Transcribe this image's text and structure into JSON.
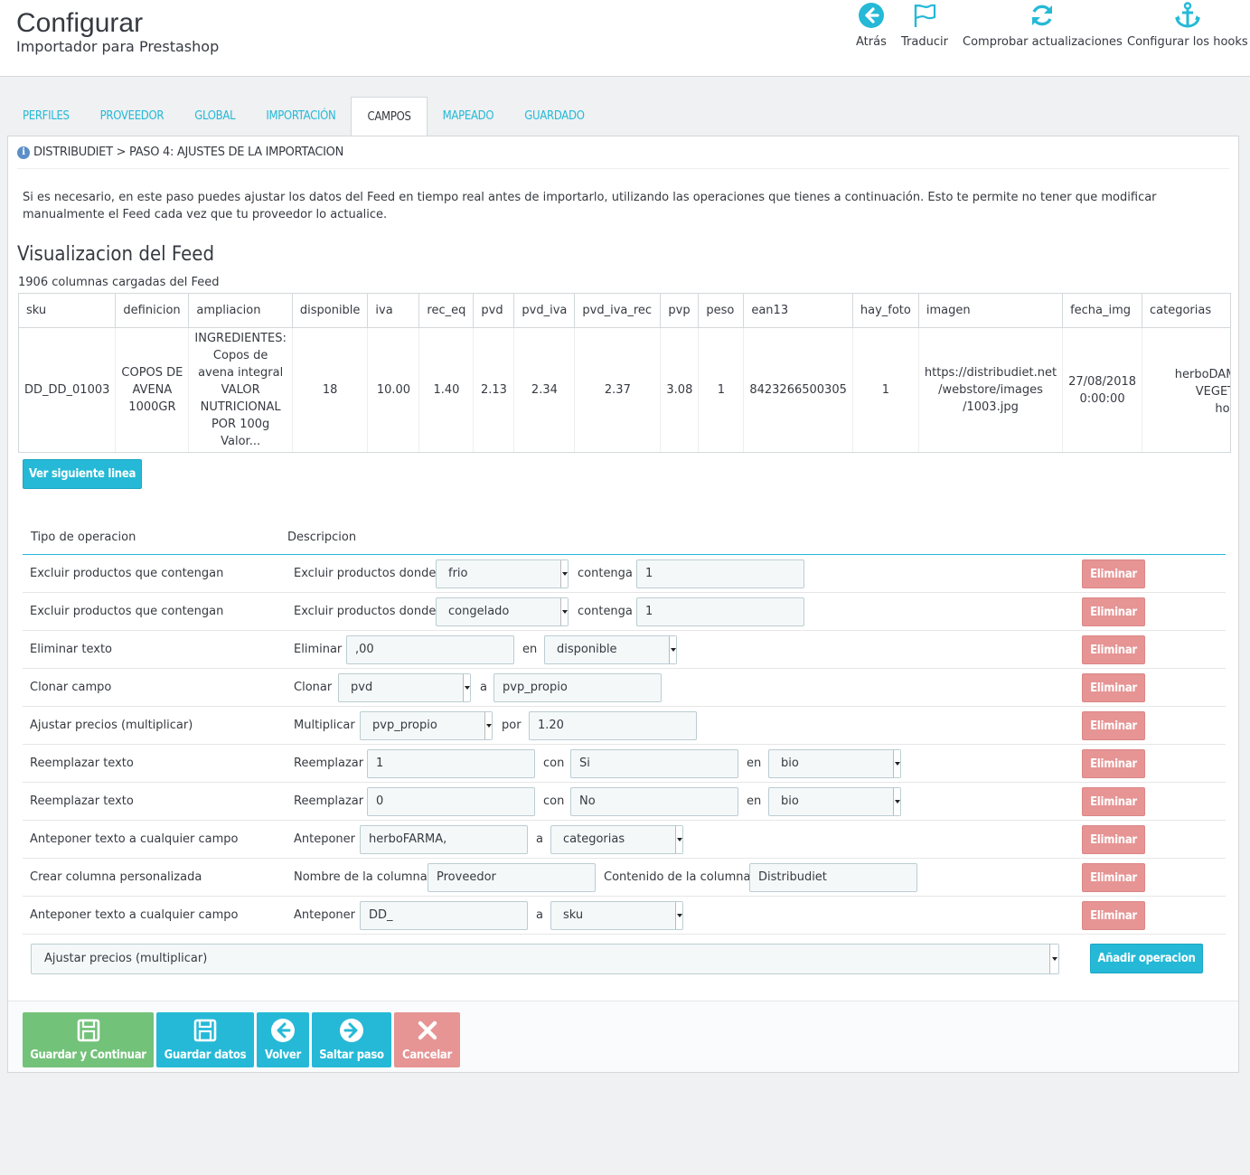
{
  "header": {
    "title": "Configurar",
    "subtitle": "Importador para Prestashop",
    "toolbar": [
      {
        "label": "Atrás",
        "icon": "arrow-left-circle-icon"
      },
      {
        "label": "Traducir",
        "icon": "flag-icon"
      },
      {
        "label": "Comprobar actualizaciones",
        "icon": "refresh-icon"
      },
      {
        "label": "Configurar los hooks",
        "icon": "anchor-icon"
      }
    ]
  },
  "tabs": [
    "PERFILES",
    "PROVEEDOR",
    "GLOBAL",
    "IMPORTACIÓN",
    "CAMPOS",
    "MAPEADO",
    "GUARDADO"
  ],
  "active_tab": "CAMPOS",
  "panel": {
    "heading": "DISTRIBUDIET > PASO 4: AJUSTES DE LA IMPORTACION",
    "intro": "Si es necesario, en este paso puedes ajustar los datos del Feed en tiempo real antes de importarlo, utilizando las operaciones que tienes a continuación. Esto te permite no tener que modificar manualmente el Feed cada vez que tu proveedor lo actualice.",
    "feed_title": "Visualizacion del Feed",
    "loaded_text": "1906 columnas cargadas del Feed",
    "feed_columns": [
      "sku",
      "definicion",
      "ampliacion",
      "disponible",
      "iva",
      "rec_eq",
      "pvd",
      "pvd_iva",
      "pvd_iva_rec",
      "pvp",
      "peso",
      "ean13",
      "hay_foto",
      "imagen",
      "fecha_img",
      "categorias"
    ],
    "feed_row": {
      "sku": "DD_DD_01003",
      "definicion": [
        "COPOS DE",
        "AVENA",
        "1000GR"
      ],
      "ampliacion": [
        "INGREDIENTES:",
        "Copos de",
        "avena integral",
        "VALOR",
        "NUTRICIONAL",
        "POR 100g",
        "Valor..."
      ],
      "disponible": "18",
      "iva": "10.00",
      "rec_eq": "1.40",
      "pvd": "2.13",
      "pvd_iva": "2.34",
      "pvd_iva_rec": "2.37",
      "pvp": "3.08",
      "peso": "1",
      "ean13": "8423266500305",
      "hay_foto": "1",
      "imagen": [
        "https://distribudiet.net",
        "/webstore/images",
        "/1003.jpg"
      ],
      "fecha_img": [
        "27/08/2018",
        "0:00:00"
      ],
      "categorias": [
        "herboDAMA,herboDAMA",
        "VEGETAL,Desayunos",
        "horas,Cereales le"
      ]
    },
    "next_line_button": "Ver siguiente linea",
    "ops_header": {
      "type": "Tipo de operacion",
      "description": "Descripcion"
    },
    "operations": [
      {
        "type": "Excluir productos que contengan",
        "w1": "Excluir productos donde",
        "f1": "frio",
        "w2": "contenga",
        "f2": "1"
      },
      {
        "type": "Excluir productos que contengan",
        "w1": "Excluir productos donde",
        "f1": "congelado",
        "w2": "contenga",
        "f2": "1"
      },
      {
        "type": "Eliminar texto",
        "w1": "Eliminar",
        "f1": ",00",
        "w2": "en",
        "f2": "disponible"
      },
      {
        "type": "Clonar campo",
        "w1": "Clonar",
        "f1": "pvd",
        "w2": "a",
        "f2": "pvp_propio"
      },
      {
        "type": "Ajustar precios (multiplicar)",
        "w1": "Multiplicar",
        "f1": "pvp_propio",
        "w2": "por",
        "f2": "1.20"
      },
      {
        "type": "Reemplazar texto",
        "w1": "Reemplazar",
        "f1": "1",
        "w2": "con",
        "f2": "Si",
        "w3": "en",
        "f3": "bio"
      },
      {
        "type": "Reemplazar texto",
        "w1": "Reemplazar",
        "f1": "0",
        "w2": "con",
        "f2": "No",
        "w3": "en",
        "f3": "bio"
      },
      {
        "type": "Anteponer texto a cualquier campo",
        "w1": "Anteponer",
        "f1": "herboFARMA,",
        "w2": "a",
        "f2": "categorias"
      },
      {
        "type": "Crear columna personalizada",
        "w1": "Nombre de la columna",
        "f1": "Proveedor",
        "w2": "Contenido de la columna",
        "f2": "Distribudiet"
      },
      {
        "type": "Anteponer texto a cualquier campo",
        "w1": "Anteponer",
        "f1": "DD_",
        "w2": "a",
        "f2": "sku"
      }
    ],
    "delete_label": "Eliminar",
    "add_select_value": "Ajustar precios (multiplicar)",
    "add_button": "Añadir operacion"
  },
  "footer": [
    {
      "label": "Guardar y Continuar",
      "icon": "save-icon",
      "color": "#72c279"
    },
    {
      "label": "Guardar datos",
      "icon": "save-icon",
      "color": "#25b9d7"
    },
    {
      "label": "Volver",
      "icon": "arrow-left-circle-icon",
      "color": "#25b9d7"
    },
    {
      "label": "Saltar paso",
      "icon": "arrow-right-circle-icon",
      "color": "#25b9d7"
    },
    {
      "label": "Cancelar",
      "icon": "close-icon",
      "color": "#e69494"
    }
  ]
}
